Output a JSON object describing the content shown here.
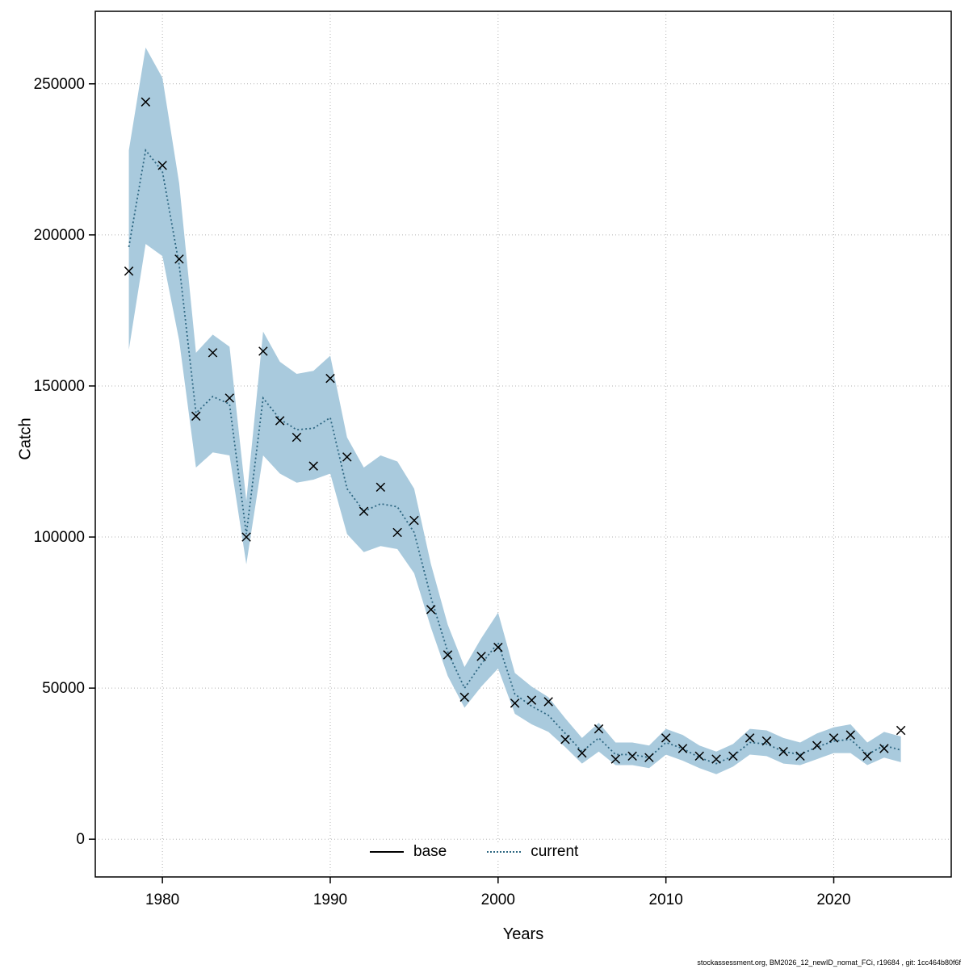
{
  "figure": {
    "x_axis_label": "Years",
    "y_axis_label": "Catch",
    "footer": "stockassessment.org, BM2026_12_newID_nomat_FCi, r19684 , git: 1cc464b80f6f"
  },
  "legend": {
    "base_label": "base",
    "current_label": "current"
  },
  "chart_data": {
    "type": "line",
    "title": "",
    "xlabel": "Years",
    "ylabel": "Catch",
    "x_range": [
      1976,
      2027
    ],
    "y_range": [
      -12500,
      274000
    ],
    "x_ticks": [
      1980,
      1990,
      2000,
      2010,
      2020
    ],
    "y_ticks": [
      0,
      50000,
      100000,
      150000,
      200000,
      250000
    ],
    "grid": true,
    "legend_position": "bottom-center-inside",
    "colors": {
      "band": "#a9cadd",
      "current_line": "#2e6782",
      "base_marker": "#000000",
      "gridline": "#b3b3b3"
    },
    "years": [
      1978,
      1979,
      1980,
      1981,
      1982,
      1983,
      1984,
      1985,
      1986,
      1987,
      1988,
      1989,
      1990,
      1991,
      1992,
      1993,
      1994,
      1995,
      1996,
      1997,
      1998,
      1999,
      2000,
      2001,
      2002,
      2003,
      2004,
      2005,
      2006,
      2007,
      2008,
      2009,
      2010,
      2011,
      2012,
      2013,
      2014,
      2015,
      2016,
      2017,
      2018,
      2019,
      2020,
      2021,
      2022,
      2023,
      2024
    ],
    "series": [
      {
        "name": "base",
        "style": "x-markers",
        "color": "#000000",
        "values": [
          188000,
          244000,
          223000,
          192000,
          140000,
          161000,
          146000,
          100000,
          161500,
          138500,
          133000,
          123500,
          152500,
          126500,
          108500,
          116500,
          101500,
          105500,
          76000,
          61000,
          47000,
          60500,
          63500,
          45000,
          46000,
          45500,
          33000,
          28500,
          36500,
          26500,
          27500,
          27000,
          33500,
          30000,
          27500,
          26500,
          27500,
          33500,
          32500,
          29000,
          27500,
          31000,
          33500,
          34500,
          27500,
          30000,
          36000
        ]
      },
      {
        "name": "current",
        "style": "dotted-line",
        "color": "#2e6782",
        "values": [
          196000,
          228000,
          221000,
          190000,
          141000,
          146500,
          144000,
          101000,
          146000,
          139000,
          135500,
          136000,
          139500,
          116000,
          108500,
          111000,
          110000,
          101500,
          80000,
          62000,
          50000,
          58000,
          65000,
          48000,
          44000,
          41000,
          35000,
          29000,
          33500,
          28000,
          28000,
          27000,
          32000,
          30000,
          27000,
          25000,
          27500,
          32000,
          31500,
          29000,
          28000,
          30500,
          32500,
          33000,
          28000,
          31000,
          29500
        ]
      }
    ],
    "confidence_band": {
      "series": "current",
      "color": "#a9cadd",
      "lower": [
        162000,
        197000,
        193000,
        165000,
        123000,
        128000,
        127000,
        91000,
        127000,
        121000,
        118000,
        119000,
        121000,
        101000,
        95000,
        97000,
        96000,
        88000,
        70000,
        54000,
        43500,
        50500,
        56500,
        41500,
        38000,
        35500,
        30500,
        25000,
        29000,
        24500,
        24500,
        23500,
        28000,
        26000,
        23500,
        21500,
        24000,
        28000,
        27500,
        25000,
        24500,
        26500,
        28500,
        28500,
        24500,
        27000,
        25500
      ],
      "upper": [
        228000,
        262000,
        252000,
        217000,
        161000,
        167000,
        163000,
        112000,
        168000,
        158000,
        154000,
        155000,
        160000,
        133000,
        123000,
        127000,
        125000,
        116000,
        91000,
        71000,
        57000,
        66500,
        75000,
        55000,
        50500,
        47000,
        40000,
        33500,
        38500,
        32000,
        32000,
        31000,
        36500,
        34500,
        31000,
        29000,
        31500,
        36500,
        36000,
        33500,
        32000,
        35000,
        37000,
        38000,
        32000,
        35500,
        34000
      ]
    }
  }
}
